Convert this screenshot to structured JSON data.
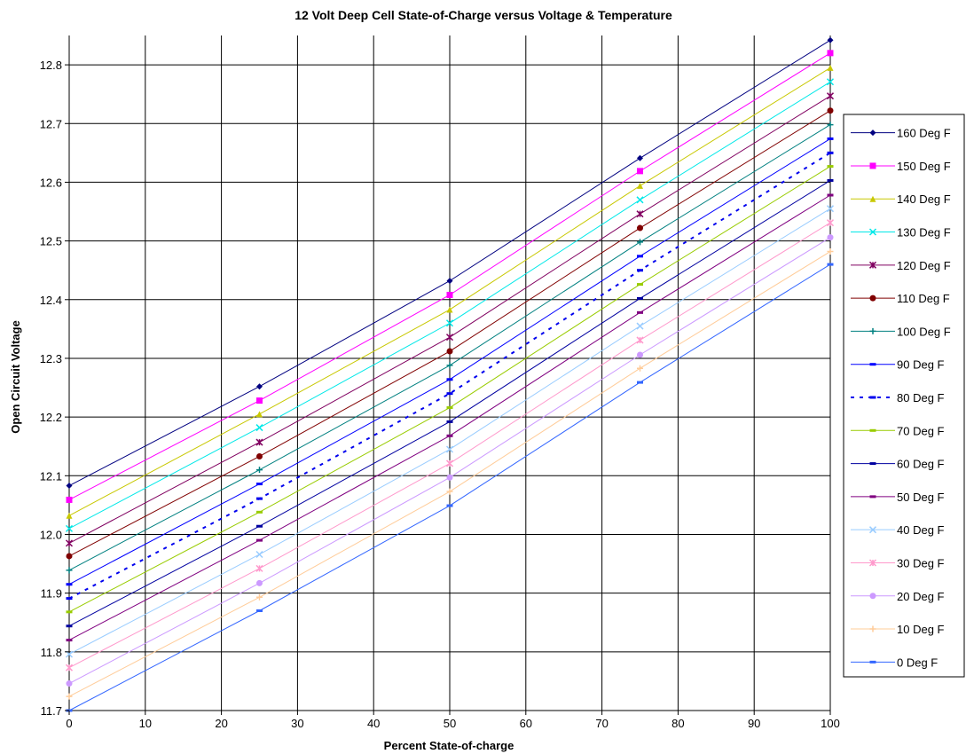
{
  "chart_data": {
    "type": "line",
    "title": "12 Volt Deep Cell State-of-Charge versus Voltage & Temperature",
    "xlabel": "Percent State-of-charge",
    "ylabel": "Open Circuit Voltage",
    "xlim": [
      0,
      100
    ],
    "ylim": [
      11.7,
      12.85
    ],
    "x_ticks": [
      "0",
      "10",
      "20",
      "30",
      "40",
      "50",
      "60",
      "70",
      "80",
      "90",
      "100"
    ],
    "y_ticks": [
      "11.7",
      "11.8",
      "11.9",
      "12.0",
      "12.1",
      "12.2",
      "12.3",
      "12.4",
      "12.5",
      "12.6",
      "12.7",
      "12.8"
    ],
    "grid": true,
    "legend_position": "right",
    "x": [
      0,
      25,
      50,
      75,
      100
    ],
    "series": [
      {
        "name": "160 Deg F",
        "color": "#000080",
        "marker": "diamond",
        "values": [
          12.083,
          12.252,
          12.432,
          12.641,
          12.842
        ]
      },
      {
        "name": "150 Deg F",
        "color": "#ff00ff",
        "marker": "square",
        "values": [
          12.059,
          12.228,
          12.408,
          12.619,
          12.82
        ]
      },
      {
        "name": "140 Deg F",
        "color": "#c8c800",
        "marker": "triangle",
        "values": [
          12.032,
          12.205,
          12.383,
          12.594,
          12.795
        ]
      },
      {
        "name": "130 Deg F",
        "color": "#00e8e8",
        "marker": "x",
        "values": [
          12.01,
          12.182,
          12.36,
          12.57,
          12.771
        ]
      },
      {
        "name": "120 Deg F",
        "color": "#800060",
        "marker": "star",
        "values": [
          11.985,
          12.157,
          12.336,
          12.546,
          12.747
        ]
      },
      {
        "name": "110 Deg F",
        "color": "#800000",
        "marker": "circle",
        "values": [
          11.963,
          12.133,
          12.312,
          12.522,
          12.722
        ]
      },
      {
        "name": "100 Deg F",
        "color": "#008080",
        "marker": "plus",
        "values": [
          11.939,
          12.11,
          12.288,
          12.498,
          12.698
        ]
      },
      {
        "name": "90 Deg F",
        "color": "#0000ff",
        "marker": "dash",
        "values": [
          11.915,
          12.086,
          12.264,
          12.474,
          12.674
        ]
      },
      {
        "name": "80 Deg F",
        "color": "#0000ee",
        "marker": "dash",
        "dashed": true,
        "values": [
          11.891,
          12.061,
          12.24,
          12.45,
          12.65
        ]
      },
      {
        "name": "70 Deg F",
        "color": "#99cc00",
        "marker": "dash",
        "values": [
          11.868,
          12.038,
          12.216,
          12.426,
          12.627
        ]
      },
      {
        "name": "60 Deg F",
        "color": "#0000a0",
        "marker": "dash",
        "values": [
          11.844,
          12.014,
          12.192,
          12.402,
          12.603
        ]
      },
      {
        "name": "50 Deg F",
        "color": "#800080",
        "marker": "dash",
        "values": [
          11.82,
          11.99,
          12.168,
          12.378,
          12.578
        ]
      },
      {
        "name": "40 Deg F",
        "color": "#99ccff",
        "marker": "x",
        "values": [
          11.796,
          11.966,
          12.145,
          12.355,
          12.555
        ]
      },
      {
        "name": "30 Deg F",
        "color": "#ff99cc",
        "marker": "star",
        "values": [
          11.773,
          11.942,
          12.121,
          12.331,
          12.531
        ]
      },
      {
        "name": "20 Deg F",
        "color": "#cc99ff",
        "marker": "circle",
        "values": [
          11.746,
          11.917,
          12.097,
          12.306,
          12.506
        ]
      },
      {
        "name": "10 Deg F",
        "color": "#ffcc99",
        "marker": "plus",
        "values": [
          11.724,
          11.893,
          12.073,
          12.283,
          12.482
        ]
      },
      {
        "name": "0 Deg F",
        "color": "#3366ff",
        "marker": "dash",
        "values": [
          11.7,
          11.87,
          12.049,
          12.259,
          12.46
        ]
      }
    ]
  }
}
